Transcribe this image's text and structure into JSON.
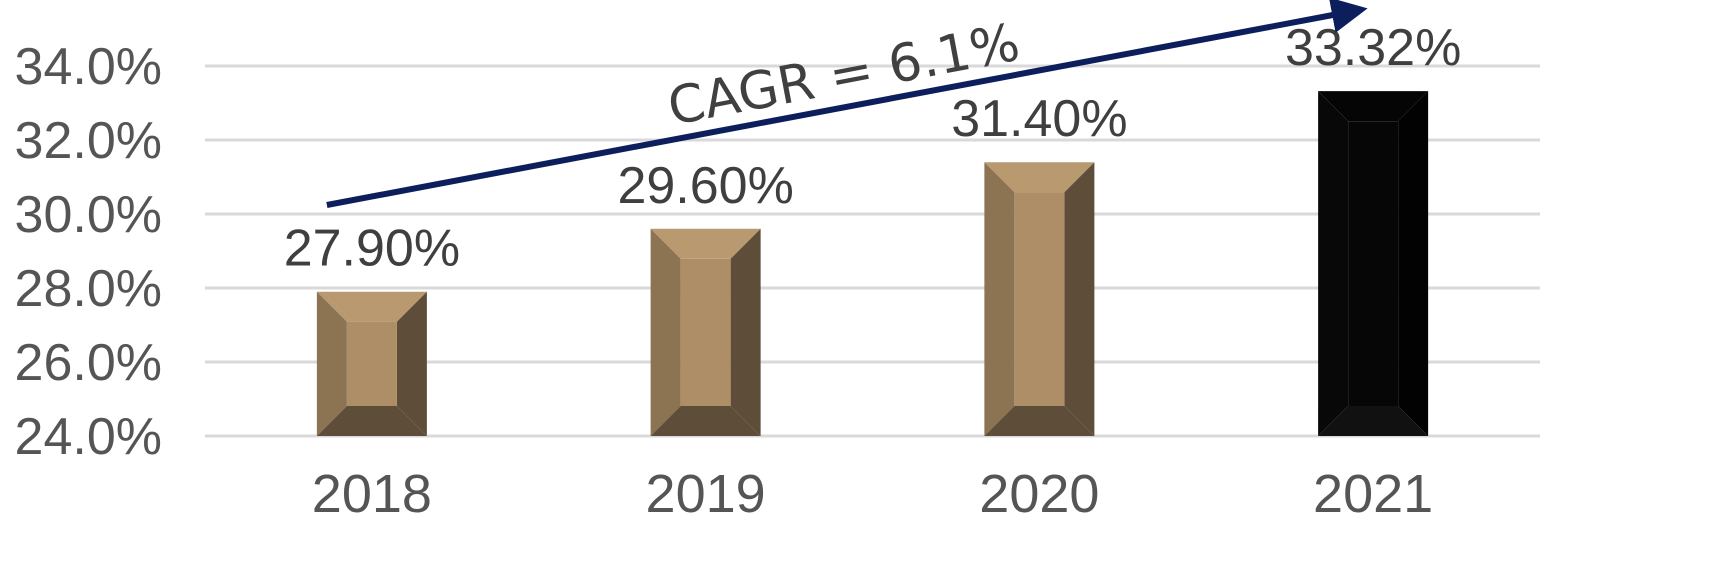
{
  "chart_data": {
    "type": "bar",
    "categories": [
      "2018",
      "2019",
      "2020",
      "2021"
    ],
    "values": [
      27.9,
      29.6,
      31.4,
      33.32
    ],
    "data_labels": [
      "27.90%",
      "29.60%",
      "31.40%",
      "33.32%"
    ],
    "ylim": [
      24.0,
      34.0
    ],
    "yticks": [
      24.0,
      26.0,
      28.0,
      30.0,
      32.0,
      34.0
    ],
    "ytick_labels": [
      "24.0%",
      "26.0%",
      "28.0%",
      "30.0%",
      "32.0%",
      "34.0%"
    ],
    "grid": true,
    "title": "",
    "xlabel": "",
    "ylabel": "",
    "annotation": {
      "text": "CAGR = 6.1%",
      "kind": "rising-arrow",
      "color": "#0c1f5c"
    },
    "colors": {
      "bar": "#ad8e66",
      "bar_highlight": "#000000",
      "highlight_category": "2021"
    }
  }
}
